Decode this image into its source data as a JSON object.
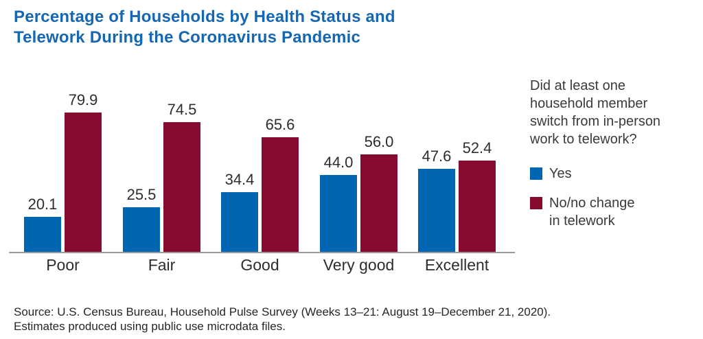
{
  "header": {
    "title": "Percentage of Households by Health Status and\nTelework During the Coronavirus Pandemic",
    "title_color": "#1567b2"
  },
  "chart_data": {
    "type": "bar",
    "title": "Percentage of Households by Health Status and Telework During the Coronavirus Pandemic",
    "categories": [
      "Poor",
      "Fair",
      "Good",
      "Very good",
      "Excellent"
    ],
    "series": [
      {
        "name": "Yes",
        "color": "#0066b1",
        "values": [
          20.1,
          25.5,
          34.4,
          44.0,
          47.6
        ]
      },
      {
        "name": "No/no change\nin telework",
        "color": "#870b2e",
        "values": [
          79.9,
          74.5,
          65.6,
          56.0,
          52.4
        ]
      }
    ],
    "xlabel": "",
    "ylabel": "",
    "ylim": [
      0,
      100
    ],
    "grid": false,
    "y_axis_visible": false,
    "data_labels": true,
    "data_label_decimals": 1,
    "legend_position": "right",
    "axis_line_color": "#9a9a9a"
  },
  "legend": {
    "title": "Did at least one\nhousehold member\nswitch from in-person\nwork to telework?"
  },
  "source": {
    "lines": [
      "Source: U.S. Census Bureau, Household Pulse Survey (Weeks 13–21: August 19–December 21, 2020).",
      "Estimates produced using public use microdata files."
    ]
  }
}
